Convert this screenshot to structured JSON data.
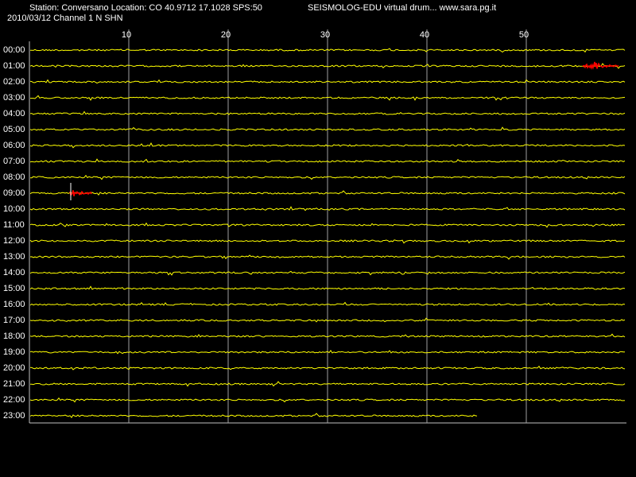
{
  "header": {
    "station": "Station: Conversano Location: CO 40.9712 17.1028 SPS:50",
    "program": "SEISMOLOG-EDU virtual drum... www.sara.pg.it",
    "date_channel": "2010/03/12  Channel 1 N SHN"
  },
  "drum": {
    "xlim": [
      0,
      60
    ],
    "xticks": [
      10,
      20,
      30,
      40,
      50
    ],
    "rows": [
      "00:00",
      "01:00",
      "02:00",
      "03:00",
      "04:00",
      "05:00",
      "06:00",
      "07:00",
      "08:00",
      "09:00",
      "10:00",
      "11:00",
      "12:00",
      "13:00",
      "14:00",
      "15:00",
      "16:00",
      "17:00",
      "18:00",
      "19:00",
      "20:00",
      "21:00",
      "22:00",
      "23:00"
    ]
  }
}
